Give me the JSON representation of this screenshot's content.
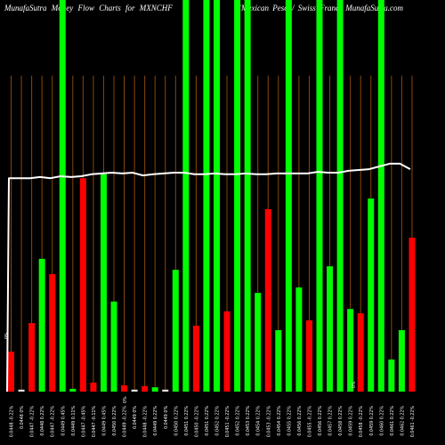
{
  "colors": {
    "background": "#000000",
    "up": "#00ff00",
    "down": "#ff0000",
    "flat": "#e0e0e0",
    "gridline": "#8a4608",
    "line": "#ffffff",
    "text": "#ffffff"
  },
  "chart_data": {
    "type": "bar",
    "title": "MunafaSutra Money Flow Charts for MXNCHF",
    "subtitle": "(Mexican Peso / Swiss Franc) MunafaSutra.com",
    "ylim": [
      0,
      100
    ],
    "grid": true,
    "legend": "none",
    "categories": [
      "0.0448 -0.22%",
      "0.0448 0%",
      "0.0447 -0.22%",
      "0.0448 0.22%",
      "0.0447 -0.22%",
      "0.0449 0.45%",
      "0.0449 0.11%",
      "0.0447 -0.45%",
      "0.0447 -0.11%",
      "0.0449 0.45%",
      "0.0450 0.22%",
      "0.0449 -0.22%",
      "0.0449 0%",
      "0.0448 -0.22%",
      "0.0449 0.22%",
      "0.0449 0%",
      "0.0450 0.22%",
      "0.0451 0.22%",
      "0.0450 -0.22%",
      "0.0451 0.22%",
      "0.0452 0.22%",
      "0.0451 -0.22%",
      "0.0452 0.22%",
      "0.0453 0.22%",
      "0.0454 0.22%",
      "0.0453 -0.22%",
      "0.0454 0.22%",
      "0.0455 0.22%",
      "0.0456 0.22%",
      "0.0455 -0.22%",
      "0.0456 0.22%",
      "0.0457 0.22%",
      "0.0458 0.22%",
      "0.0459 0.22%",
      "0.0458 -0.22%",
      "0.0459 0.22%",
      "0.0460 0.22%",
      "0.0461 0.22%",
      "0.0462 0.22%",
      "0.0461 -0.22%"
    ],
    "series": [
      {
        "type": "bar",
        "values": [
          10.2,
          0.5,
          17.5,
          33.9,
          30.0,
          100,
          0.7,
          54.5,
          2.3,
          55.5,
          23.0,
          1.6,
          0.5,
          1.4,
          1.1,
          0.5,
          31.1,
          100,
          16.8,
          100,
          100,
          20.5,
          100,
          100,
          25.2,
          46.6,
          15.7,
          100,
          26.6,
          18.2,
          100,
          32.0,
          100,
          21.1,
          20.0,
          49.3,
          100,
          8.2,
          15.7,
          39.3
        ],
        "direction": [
          "down",
          "flat",
          "down",
          "up",
          "down",
          "up",
          "up",
          "down",
          "down",
          "up",
          "up",
          "down",
          "flat",
          "down",
          "up",
          "flat",
          "up",
          "up",
          "down",
          "up",
          "up",
          "down",
          "up",
          "up",
          "up",
          "down",
          "up",
          "up",
          "up",
          "down",
          "up",
          "up",
          "up",
          "up",
          "down",
          "up",
          "up",
          "up",
          "up",
          "down"
        ]
      },
      {
        "type": "line",
        "values": [
          54.5,
          54.5,
          54.5,
          54.8,
          54.5,
          55.0,
          54.8,
          55.0,
          55.5,
          55.7,
          55.9,
          55.7,
          55.9,
          55.2,
          55.5,
          55.7,
          55.9,
          55.9,
          55.5,
          55.5,
          55.7,
          55.5,
          55.5,
          55.7,
          55.5,
          55.5,
          55.7,
          55.7,
          55.7,
          55.7,
          56.1,
          55.9,
          55.9,
          56.4,
          56.6,
          56.8,
          57.5,
          58.2,
          58.2,
          56.8
        ]
      }
    ],
    "annotations": [
      "0%",
      "0%",
      "0%"
    ]
  }
}
